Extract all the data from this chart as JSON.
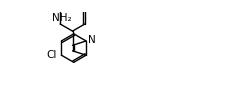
{
  "bg": "#ffffff",
  "line_color": "#000000",
  "line_width": 1.0,
  "font_size_label": 7.5,
  "label_Cl": "Cl",
  "label_N": "N",
  "label_NH2": "NH₂",
  "figsize": [
    2.34,
    0.99
  ],
  "dpi": 100
}
